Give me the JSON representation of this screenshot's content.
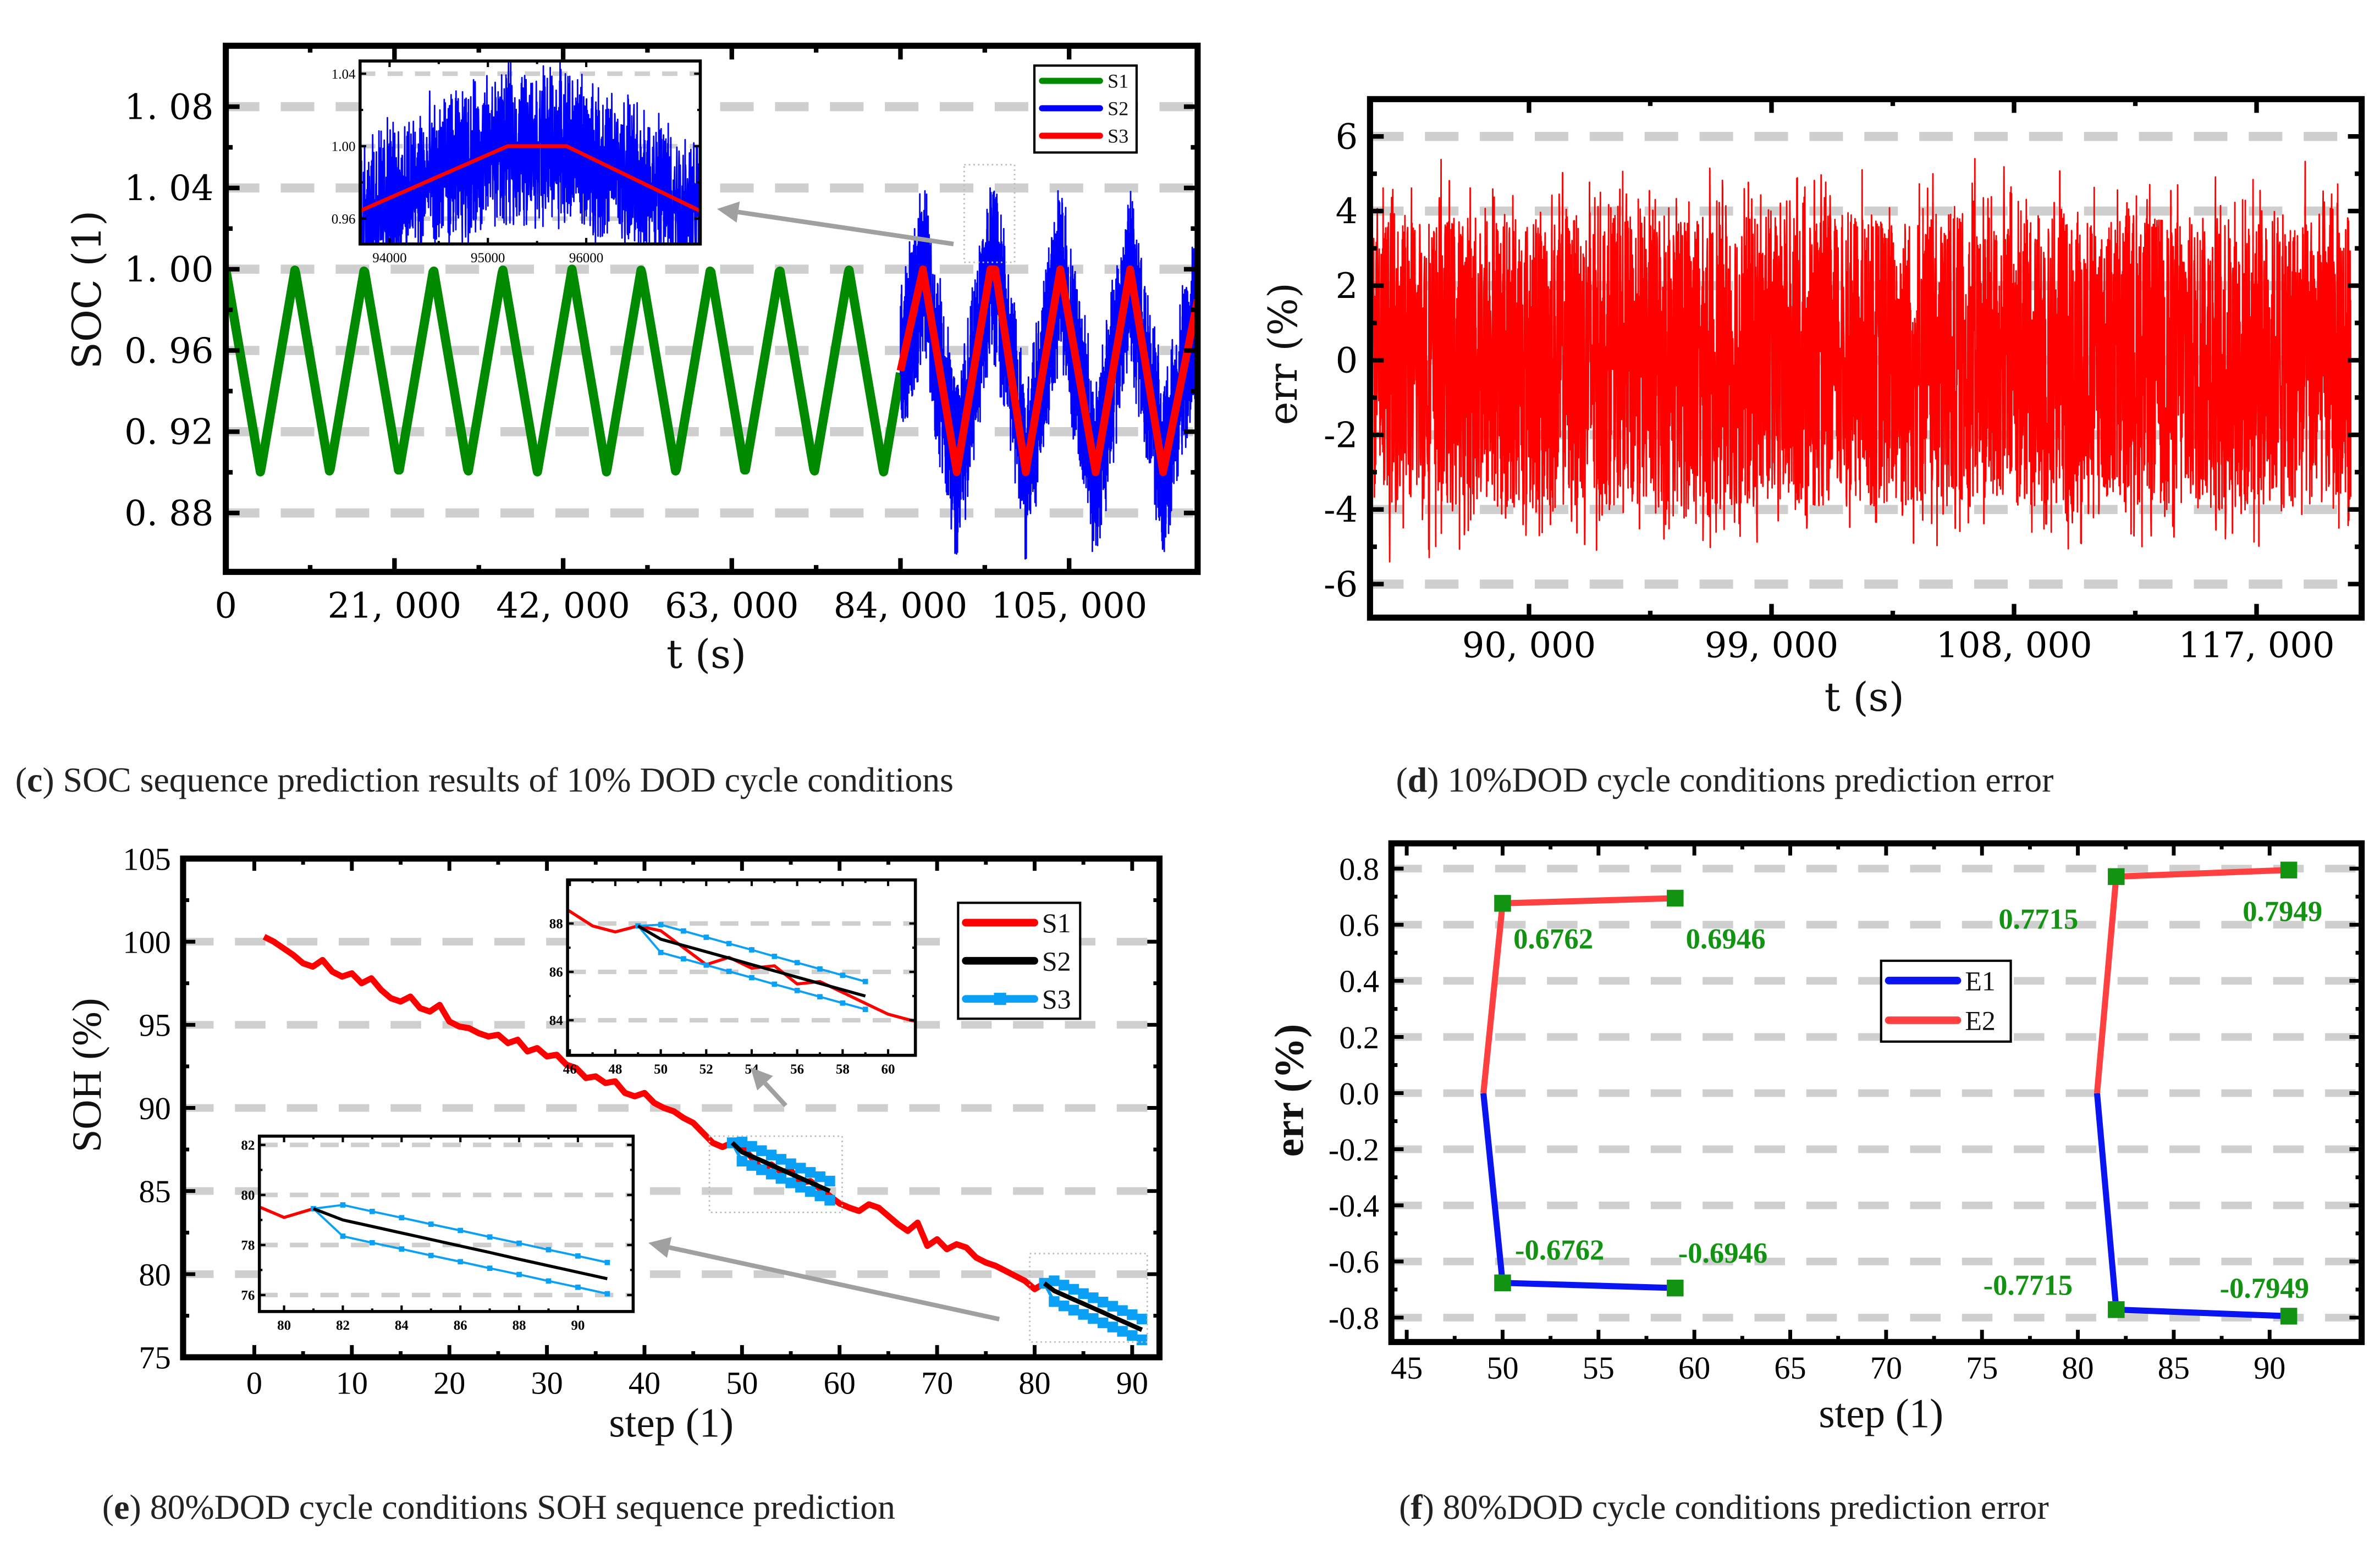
{
  "chart_data": [
    {
      "panel": "c",
      "type": "line",
      "caption": {
        "prefix": "(",
        "letter": "c",
        "text": ") SOC sequence prediction results of 10% DOD cycle conditions"
      },
      "xlabel": "t (s)",
      "ylabel": "SOC (1)",
      "xlim": [
        0,
        121000
      ],
      "ylim": [
        0.851,
        1.11
      ],
      "xticks": [
        0,
        21000,
        42000,
        63000,
        84000,
        105000
      ],
      "xtick_labels": [
        "0",
        "21, 000",
        "42, 000",
        "63, 000",
        "84, 000",
        "105, 000"
      ],
      "yticks": [
        0.88,
        0.92,
        0.96,
        1.0,
        1.04,
        1.08
      ],
      "ytick_labels": [
        "0. 88",
        "0. 92",
        "0. 96",
        "1. 00",
        "1. 04",
        "1. 08"
      ],
      "grid": true,
      "legend_position": "top-right",
      "legend": [
        {
          "label": "S1",
          "color": "#008a00"
        },
        {
          "label": "S2",
          "color": "#0000ff"
        },
        {
          "label": "S3",
          "color": "#ff0000"
        }
      ],
      "S1": {
        "t_start": 0,
        "t_end": 84000,
        "period": 8620,
        "max": 1.0,
        "min": 0.9
      },
      "S3": {
        "points": [
          [
            84000,
            0.95
          ],
          [
            86800,
            1.0
          ],
          [
            91000,
            0.9
          ],
          [
            95200,
            1.0
          ],
          [
            95800,
            1.0
          ],
          [
            99600,
            0.9
          ],
          [
            103900,
            1.0
          ],
          [
            108300,
            0.9
          ],
          [
            112600,
            1.0
          ],
          [
            116700,
            0.9
          ],
          [
            121000,
            0.985
          ]
        ]
      },
      "S2": {
        "description": "noisy measurement around S3",
        "noise_amplitude": 0.05
      },
      "inset": {
        "xlim": [
          93700,
          97160
        ],
        "ylim": [
          0.946,
          1.047
        ],
        "xticks": [
          94000,
          95000,
          96000
        ],
        "xtick_labels": [
          "94000",
          "95000",
          "96000"
        ],
        "yticks": [
          0.96,
          1.0,
          1.04
        ],
        "ytick_labels": [
          "0.96",
          "1.00",
          "1.04"
        ]
      }
    },
    {
      "panel": "d",
      "type": "line",
      "caption": {
        "prefix": "(",
        "letter": "d",
        "text": ") 10%DOD cycle conditions prediction error"
      },
      "xlabel": "t (s)",
      "ylabel": "err (%)",
      "xlim": [
        84100,
        120900
      ],
      "ylim": [
        -6.9,
        7.0
      ],
      "xticks": [
        90000,
        99000,
        108000,
        117000
      ],
      "xtick_labels": [
        "90, 000",
        "99, 000",
        "108, 000",
        "117, 000"
      ],
      "yticks": [
        -6,
        -4,
        -2,
        0,
        2,
        4,
        6
      ],
      "ytick_labels": [
        "-6",
        "-4",
        "-2",
        "0",
        "2",
        "4",
        "6"
      ],
      "grid": true,
      "series": {
        "name": "err",
        "color": "#ff0000",
        "t_start": 84100,
        "t_end": 120500,
        "typical_range": [
          -4,
          4
        ],
        "peak_range": [
          -5.5,
          5.5
        ]
      }
    },
    {
      "panel": "e",
      "type": "line",
      "caption": {
        "prefix": "(",
        "letter": "e",
        "text": ") 80%DOD cycle conditions SOH sequence prediction"
      },
      "xlabel": "step (1)",
      "ylabel": "SOH (%)",
      "xlim": [
        -7.3,
        92.8
      ],
      "ylim": [
        75,
        105
      ],
      "xticks": [
        0,
        10,
        20,
        30,
        40,
        50,
        60,
        70,
        80,
        90
      ],
      "xtick_labels": [
        "0",
        "10",
        "20",
        "30",
        "40",
        "50",
        "60",
        "70",
        "80",
        "90"
      ],
      "yticks": [
        75,
        80,
        85,
        90,
        95,
        100,
        105
      ],
      "ytick_labels": [
        "75",
        "80",
        "85",
        "90",
        "95",
        "100",
        "105"
      ],
      "grid": true,
      "legend_position": "top-right",
      "legend": [
        {
          "label": "S1",
          "color": "#ff0000"
        },
        {
          "label": "S2",
          "color": "#000000"
        },
        {
          "label": "S3",
          "color": "#0aa0f5"
        }
      ],
      "S1": {
        "x_start": 1,
        "values": [
          100.3,
          100.0,
          99.6,
          99.2,
          98.7,
          98.5,
          98.9,
          98.2,
          97.9,
          98.1,
          97.5,
          97.8,
          97.1,
          96.6,
          96.4,
          96.7,
          96.0,
          95.8,
          96.2,
          95.2,
          94.9,
          94.8,
          94.5,
          94.3,
          94.4,
          93.9,
          94.1,
          93.4,
          93.6,
          93.1,
          93.2,
          92.6,
          92.4,
          91.8,
          91.9,
          91.5,
          91.6,
          90.9,
          90.7,
          90.9,
          90.3,
          90.0,
          89.8,
          89.4,
          89.1,
          88.5,
          87.9,
          87.65,
          87.9,
          87.7,
          87.0,
          86.3,
          86.6,
          86.15,
          86.25,
          85.5,
          85.6,
          85.15,
          84.7,
          84.25,
          84.0,
          83.8,
          84.2,
          84.0,
          83.5,
          83.0,
          82.6,
          83.1,
          81.7,
          82.1,
          81.5,
          81.8,
          81.6,
          81.0,
          80.7,
          80.5,
          80.2,
          79.9,
          79.6,
          79.1,
          79.45
        ]
      },
      "segments": [
        {
          "x_start": 49,
          "S2": [
            87.9,
            87.35,
            87.09,
            86.83,
            86.57,
            86.3,
            86.04,
            85.78,
            85.52,
            85.26,
            85.0
          ],
          "S3_upper": [
            87.9,
            87.95,
            87.69,
            87.43,
            87.17,
            86.91,
            86.64,
            86.38,
            86.12,
            85.86,
            85.6
          ],
          "S3_lower": [
            87.9,
            86.8,
            86.54,
            86.28,
            86.02,
            85.76,
            85.49,
            85.23,
            84.97,
            84.71,
            84.45
          ]
        },
        {
          "x_start": 81,
          "S2": [
            79.45,
            79.0,
            78.74,
            78.48,
            78.22,
            77.96,
            77.7,
            77.43,
            77.17,
            76.91,
            76.65
          ],
          "S3_upper": [
            79.45,
            79.6,
            79.34,
            79.09,
            78.83,
            78.58,
            78.32,
            78.07,
            77.81,
            77.56,
            77.3
          ],
          "S3_lower": [
            79.45,
            78.35,
            78.09,
            77.84,
            77.58,
            77.33,
            77.07,
            76.82,
            76.56,
            76.31,
            76.05
          ]
        }
      ],
      "insets": [
        {
          "xlim": [
            45.9,
            61.2
          ],
          "ylim": [
            82.55,
            89.8
          ],
          "xticks": [
            46,
            48,
            50,
            52,
            54,
            56,
            58,
            60
          ],
          "xtick_labels": [
            "46",
            "48",
            "50",
            "52",
            "54",
            "56",
            "58",
            "60"
          ],
          "yticks": [
            84,
            86,
            88
          ],
          "ytick_labels": [
            "84",
            "86",
            "88"
          ]
        },
        {
          "xlim": [
            79.16,
            91.88
          ],
          "ylim": [
            75.34,
            82.35
          ],
          "xticks": [
            80,
            82,
            84,
            86,
            88,
            90
          ],
          "xtick_labels": [
            "80",
            "82",
            "84",
            "86",
            "88",
            "90"
          ],
          "yticks": [
            76,
            78,
            80,
            82
          ],
          "ytick_labels": [
            "76",
            "78",
            "80",
            "82"
          ]
        }
      ]
    },
    {
      "panel": "f",
      "type": "line",
      "caption": {
        "prefix": "(",
        "letter": "f",
        "text": ") 80%DOD cycle conditions prediction error"
      },
      "xlabel": "step (1)",
      "ylabel": "err (%)",
      "xlim": [
        44.2,
        94.8
      ],
      "ylim": [
        -0.887,
        0.89
      ],
      "xticks": [
        45,
        50,
        55,
        60,
        65,
        70,
        75,
        80,
        85,
        90
      ],
      "xtick_labels": [
        "45",
        "50",
        "55",
        "60",
        "65",
        "70",
        "75",
        "80",
        "85",
        "90"
      ],
      "yticks": [
        -0.8,
        -0.6,
        -0.4,
        -0.2,
        0.0,
        0.2,
        0.4,
        0.6,
        0.8
      ],
      "ytick_labels": [
        "-0.8",
        "-0.6",
        "-0.4",
        "-0.2",
        "0.0",
        "0.2",
        "0.4",
        "0.6",
        "0.8"
      ],
      "grid": true,
      "legend_position": "center",
      "legend": [
        {
          "label": "E1",
          "color": "#0a14f0"
        },
        {
          "label": "E2",
          "color": "#ff4040"
        }
      ],
      "series": [
        {
          "name": "E1",
          "segments": [
            [
              [
                49,
                0
              ],
              [
                50,
                -0.6762
              ],
              [
                59,
                -0.6946
              ]
            ],
            [
              [
                81,
                0
              ],
              [
                82,
                -0.7715
              ],
              [
                91,
                -0.7949
              ]
            ]
          ]
        },
        {
          "name": "E2",
          "segments": [
            [
              [
                49,
                0
              ],
              [
                50,
                0.6762
              ],
              [
                59,
                0.6946
              ]
            ],
            [
              [
                81,
                0
              ],
              [
                82,
                0.7715
              ],
              [
                91,
                0.7949
              ]
            ]
          ]
        }
      ],
      "marker_color": "#129412",
      "annotations": [
        "0.6762",
        "0.6946",
        "0.7715",
        "0.7949",
        "-0.6762",
        "-0.6946",
        "-0.7715",
        "-0.7949"
      ]
    }
  ]
}
